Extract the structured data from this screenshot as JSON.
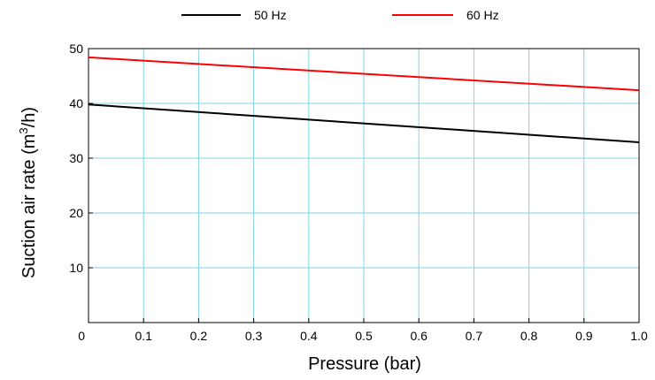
{
  "chart_data": {
    "type": "line",
    "xlabel": "Pressure (bar)",
    "ylabel": "Suction air rate (m3/h)",
    "ylabel_parts": {
      "before": "Suction air rate (m",
      "sup": "3",
      "after": "/h)"
    },
    "xlim": [
      0,
      1.0
    ],
    "ylim": [
      0,
      50
    ],
    "x_ticks": [
      "0",
      "0.1",
      "0.2",
      "0.3",
      "0.4",
      "0.5",
      "0.6",
      "0.7",
      "0.8",
      "0.9",
      "1.0"
    ],
    "y_ticks": [
      "10",
      "20",
      "30",
      "40",
      "50"
    ],
    "grid": true,
    "legend_position": "top",
    "series": [
      {
        "name": "50 Hz",
        "color": "#000000",
        "x": [
          0,
          1.0
        ],
        "y": [
          39.8,
          32.9
        ]
      },
      {
        "name": "60 Hz",
        "color": "#ff0000",
        "x": [
          0,
          1.0
        ],
        "y": [
          48.4,
          42.4
        ]
      }
    ]
  },
  "legend": {
    "items": [
      {
        "label": "50 Hz",
        "color": "#000000"
      },
      {
        "label": "60 Hz",
        "color": "#ff0000"
      }
    ]
  },
  "colors": {
    "grid": "#7fd3e6",
    "axis": "#000000"
  }
}
